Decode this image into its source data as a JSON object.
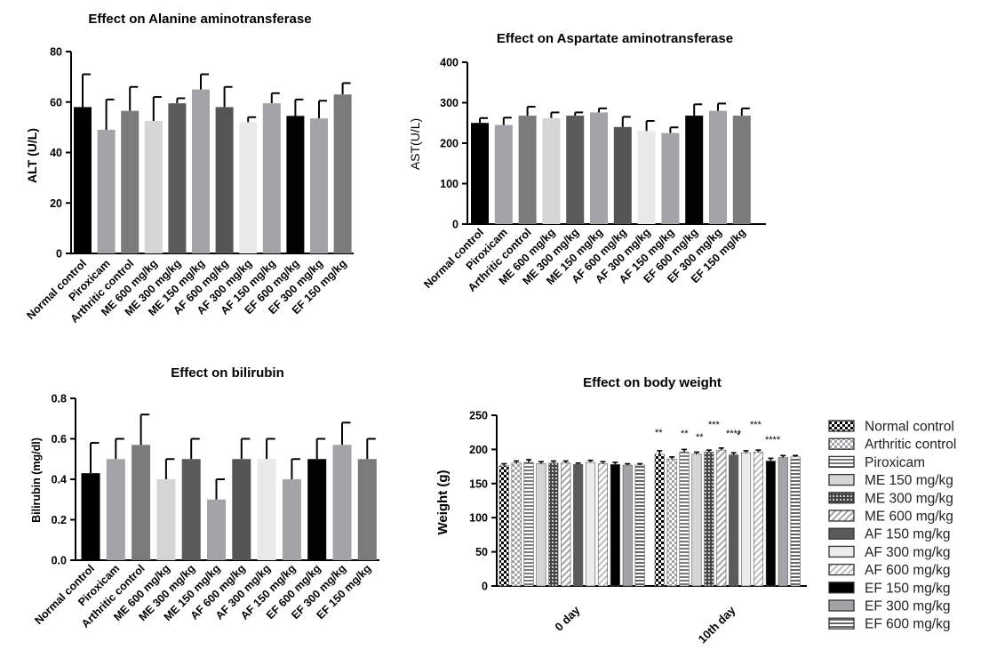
{
  "figure": {
    "palette": {
      "Normal control": "#000000",
      "Piroxicam": "#a3a3a8",
      "Arthritic control": "#7b7b7b",
      "ME 600 mg/kg": "#d5d5d5",
      "ME 300 mg/kg": "#5a5a5a",
      "ME 150 mg/kg": "#a3a3a8",
      "AF 600 mg/kg": "#555555",
      "AF 300 mg/kg": "#e9e9e9",
      "AF 150 mg/kg": "#a3a3a8",
      "EF 600 mg/kg": "#000000",
      "EF 300 mg/kg": "#a3a3a8",
      "EF 150 mg/kg": "#7b7b7b"
    },
    "patterns": {
      "Normal control": "checker",
      "Arthritic control": "checker-light",
      "Piroxicam": "hstripe",
      "ME 150 mg/kg": "solid-light",
      "ME 300 mg/kg": "grid-dark",
      "ME 600 mg/kg": "diag",
      "AF 150 mg/kg": "solid-dark",
      "AF 300 mg/kg": "solid-verylight",
      "AF 600 mg/kg": "diag-light",
      "EF 150 mg/kg": "solid-black",
      "EF 300 mg/kg": "solid-gray",
      "EF 600 mg/kg": "hstripe-dark"
    }
  },
  "chart_data": [
    {
      "id": "alt",
      "type": "bar",
      "title": "Effect on Alanine aminotransferase",
      "ylabel": "ALT (U/L)",
      "ylim": [
        0,
        80
      ],
      "yticks": [
        0,
        20,
        40,
        60,
        80
      ],
      "categories": [
        "Normal control",
        "Piroxicam",
        "Arthritic control",
        "ME 600 mg/kg",
        "ME 300 mg/kg",
        "ME 150 mg/kg",
        "AF 600 mg/kg",
        "AF 300 mg/kg",
        "AF 150 mg/kg",
        "EF 600 mg/kg",
        "EF 300 mg/kg",
        "EF 150 mg/kg"
      ],
      "values": [
        58,
        49,
        56.5,
        52.5,
        59.5,
        65,
        58,
        52,
        59.5,
        54.5,
        53.5,
        63
      ],
      "errors": [
        13,
        12,
        9.5,
        9.5,
        2,
        6,
        8,
        2,
        4,
        6.5,
        7,
        4.5
      ]
    },
    {
      "id": "ast",
      "type": "bar",
      "title": "Effect on Aspartate aminotransferase",
      "ylabel": "AST(U/L)",
      "ylim": [
        0,
        400
      ],
      "yticks": [
        0,
        100,
        200,
        300,
        400
      ],
      "categories": [
        "Normal control",
        "Piroxicam",
        "Arthritic control",
        "ME 600 mg/kg",
        "ME 300 mg/kg",
        "ME 150 mg/kg",
        "AF 600 mg/kg",
        "AF 300 mg/kg",
        "AF 150 mg/kg",
        "EF 600 mg/kg",
        "EF 300 mg/kg",
        "EF 150 mg/kg"
      ],
      "values": [
        250,
        245,
        268,
        262,
        268,
        276,
        240,
        230,
        225,
        268,
        280,
        268
      ],
      "errors": [
        12,
        18,
        22,
        14,
        8,
        10,
        25,
        25,
        14,
        28,
        18,
        18
      ]
    },
    {
      "id": "bil",
      "type": "bar",
      "title": "Effect on bilirubin",
      "ylabel": "Bilirubin (mg/dl)",
      "ylim": [
        0,
        0.8
      ],
      "yticks": [
        0.0,
        0.2,
        0.4,
        0.6,
        0.8
      ],
      "categories": [
        "Normal control",
        "Piroxicam",
        "Arthritic control",
        "ME 600 mg/kg",
        "ME 300 mg/kg",
        "ME 150 mg/kg",
        "AF 600 mg/kg",
        "AF 300 mg/kg",
        "AF 150 mg/kg",
        "EF 600 mg/kg",
        "EF 300 mg/kg",
        "EF 150 mg/kg"
      ],
      "values": [
        0.43,
        0.5,
        0.57,
        0.4,
        0.5,
        0.3,
        0.5,
        0.5,
        0.4,
        0.5,
        0.57,
        0.5
      ],
      "errors": [
        0.15,
        0.1,
        0.15,
        0.1,
        0.1,
        0.1,
        0.1,
        0.1,
        0.1,
        0.1,
        0.11,
        0.1
      ]
    },
    {
      "id": "bw",
      "type": "bar",
      "title": "Effect on body weight",
      "ylabel": "Weight (g)",
      "ylim": [
        0,
        250
      ],
      "yticks": [
        0,
        50,
        100,
        150,
        200,
        250
      ],
      "categories": [
        "0 day",
        "10th day"
      ],
      "series": [
        {
          "name": "Normal control",
          "values": [
            176,
            193
          ],
          "errors": [
            3,
            5
          ]
        },
        {
          "name": "Arthritic control",
          "values": [
            180,
            186
          ],
          "errors": [
            3,
            3
          ]
        },
        {
          "name": "Piroxicam",
          "values": [
            181,
            196
          ],
          "errors": [
            4,
            4
          ]
        },
        {
          "name": "ME 150 mg/kg",
          "values": [
            179,
            193
          ],
          "errors": [
            3,
            3
          ]
        },
        {
          "name": "ME 300 mg/kg",
          "values": [
            180,
            196
          ],
          "errors": [
            3,
            3
          ]
        },
        {
          "name": "ME 600 mg/kg",
          "values": [
            180,
            199
          ],
          "errors": [
            3,
            3
          ]
        },
        {
          "name": "AF 150 mg/kg",
          "values": [
            178,
            192
          ],
          "errors": [
            2,
            3
          ]
        },
        {
          "name": "AF 300 mg/kg",
          "values": [
            181,
            195
          ],
          "errors": [
            3,
            3
          ]
        },
        {
          "name": "AF 600 mg/kg",
          "values": [
            179,
            196
          ],
          "errors": [
            3,
            3
          ]
        },
        {
          "name": "EF 150 mg/kg",
          "values": [
            178,
            183
          ],
          "errors": [
            3,
            4
          ]
        },
        {
          "name": "EF 300 mg/kg",
          "values": [
            177,
            188
          ],
          "errors": [
            2,
            3
          ]
        },
        {
          "name": "EF 600 mg/kg",
          "values": [
            177,
            189
          ],
          "errors": [
            2,
            2
          ]
        }
      ],
      "annotations": [
        "**",
        "**",
        "**",
        "***",
        "****",
        "*",
        "***",
        "****"
      ]
    }
  ]
}
